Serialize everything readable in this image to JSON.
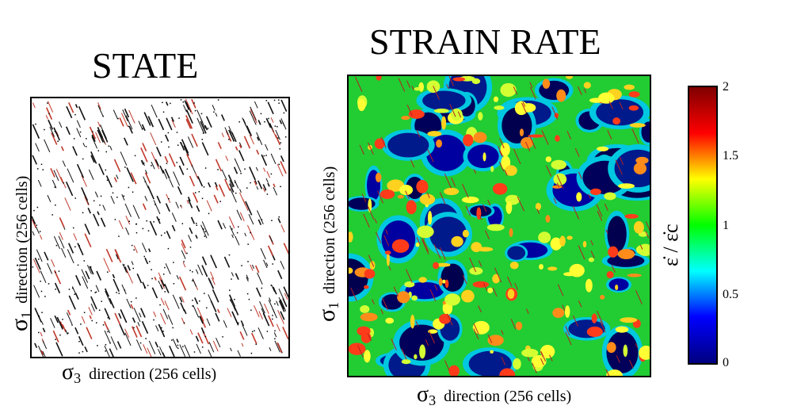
{
  "left_panel": {
    "title": "STATE",
    "x_axis": {
      "symbol": "σ",
      "sub": "3",
      "text": "direction (256 cells)"
    },
    "y_axis": {
      "symbol": "σ",
      "sub": "1",
      "text": "direction (256 cells)"
    },
    "grid_cells": 256
  },
  "right_panel": {
    "title": "STRAIN RATE",
    "x_axis": {
      "symbol": "σ",
      "sub": "3",
      "text": "direction (256 cells)"
    },
    "y_axis": {
      "symbol": "σ",
      "sub": "1",
      "text": "direction (256 cells)"
    },
    "grid_cells": 256
  },
  "colorbar": {
    "label": "ε̇ / ε̇c",
    "ticks": [
      "2",
      "1.5",
      "1",
      "0.5",
      "0"
    ],
    "tick_values": [
      2,
      1.5,
      1,
      0.5,
      0
    ],
    "range": [
      0,
      2
    ],
    "colors": [
      "#00007f",
      "#0000ff",
      "#00ffff",
      "#00ff00",
      "#ffff00",
      "#ff0000",
      "#7f0000"
    ]
  }
}
